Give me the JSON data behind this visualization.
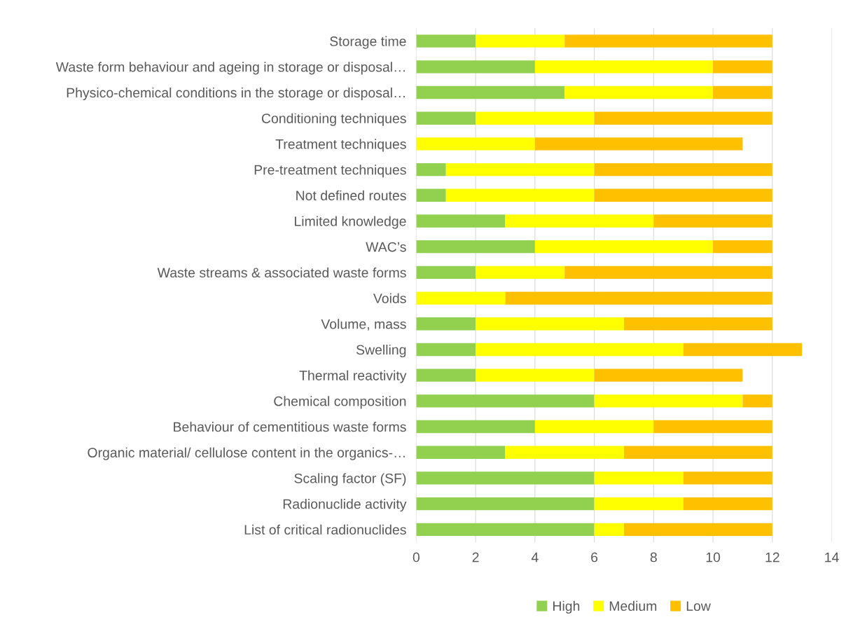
{
  "chart_data": {
    "type": "bar",
    "orientation": "horizontal",
    "stacked": true,
    "categories": [
      "Storage time",
      "Waste form behaviour and ageing in storage or disposal…",
      "Physico-chemical conditions in the storage or disposal…",
      "Conditioning techniques",
      "Treatment techniques",
      "Pre-treatment techniques",
      "Not defined routes",
      "Limited knowledge",
      "WAC’s",
      "Waste streams & associated waste forms",
      "Voids",
      "Volume, mass",
      "Swelling",
      "Thermal reactivity",
      "Chemical composition",
      "Behaviour of cementitious waste forms",
      "Organic material/ cellulose content in the organics-…",
      "Scaling factor (SF)",
      "Radionuclide activity",
      "List of critical radionuclides"
    ],
    "series": [
      {
        "name": "High",
        "color": "#92d050",
        "values": [
          2,
          4,
          5,
          2,
          0,
          1,
          1,
          3,
          4,
          2,
          0,
          2,
          2,
          2,
          6,
          4,
          3,
          6,
          6,
          6
        ]
      },
      {
        "name": "Medium",
        "color": "#ffff00",
        "values": [
          3,
          6,
          5,
          4,
          4,
          5,
          5,
          5,
          6,
          3,
          3,
          5,
          7,
          4,
          5,
          4,
          4,
          3,
          3,
          1
        ]
      },
      {
        "name": "Low",
        "color": "#ffc000",
        "values": [
          7,
          2,
          2,
          6,
          7,
          6,
          6,
          4,
          2,
          7,
          9,
          5,
          4,
          5,
          1,
          4,
          5,
          3,
          3,
          5
        ]
      }
    ],
    "xlim": [
      0,
      14
    ],
    "xticks": [
      0,
      2,
      4,
      6,
      8,
      10,
      12,
      14
    ],
    "grid": "x",
    "legend": "bottom"
  }
}
